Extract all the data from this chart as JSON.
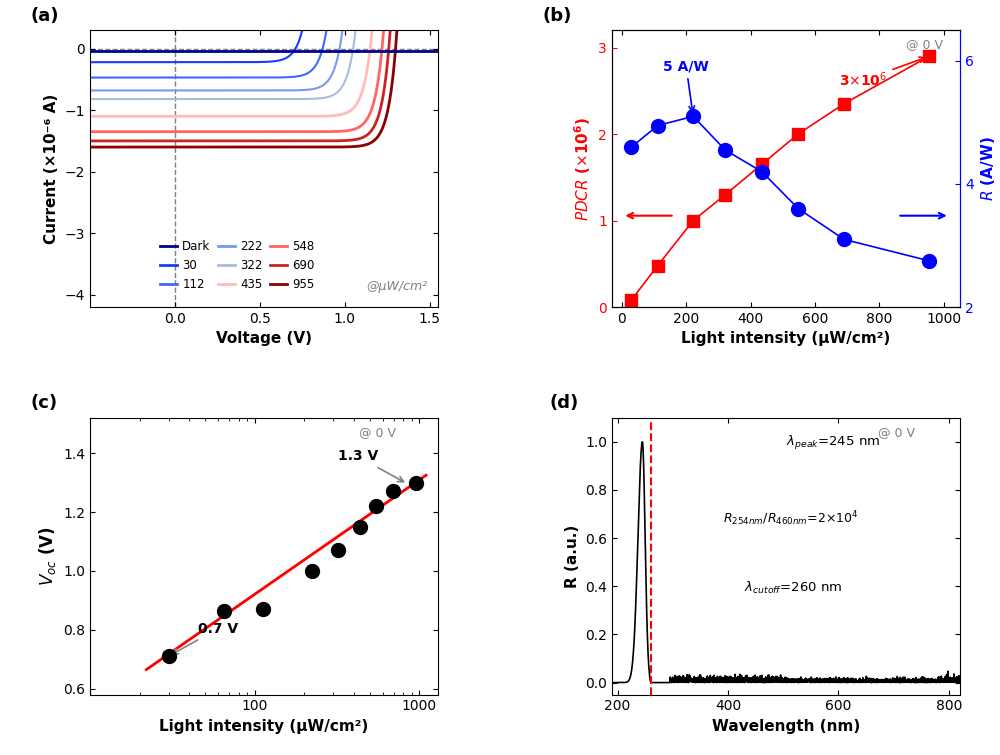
{
  "panel_a": {
    "labels": [
      "Dark",
      "30",
      "112",
      "222",
      "322",
      "435",
      "548",
      "690",
      "955"
    ],
    "colors": [
      "#00008B",
      "#1a3aff",
      "#4466ff",
      "#7799ee",
      "#aabbdd",
      "#ffbbbb",
      "#ff6666",
      "#cc2222",
      "#8B0000"
    ],
    "voc_values": [
      0,
      0.71,
      0.87,
      0.97,
      1.05,
      1.15,
      1.22,
      1.26,
      1.3
    ],
    "isc_values": [
      0.0,
      -0.22,
      -0.47,
      -0.68,
      -0.82,
      -1.1,
      -1.35,
      -1.5,
      -1.6
    ],
    "dark_level": -0.04,
    "xlim": [
      -0.5,
      1.55
    ],
    "ylim": [
      -4.2,
      0.3
    ],
    "xlabel": "Voltage (V)",
    "ylabel": "Current (×10⁻⁶ A)",
    "annotation": "@μW/cm²"
  },
  "panel_b": {
    "pdcr_x": [
      30,
      112,
      222,
      322,
      435,
      548,
      690,
      955
    ],
    "pdcr_y": [
      0.08,
      0.48,
      1.0,
      1.3,
      1.65,
      2.0,
      2.35,
      2.9
    ],
    "R_x": [
      30,
      112,
      222,
      322,
      435,
      548,
      690,
      955
    ],
    "R_y": [
      4.6,
      4.95,
      5.1,
      4.55,
      4.2,
      3.6,
      3.1,
      2.75
    ],
    "xlim": [
      -30,
      1050
    ],
    "pdcr_ylim": [
      0,
      3.2
    ],
    "R_ylim": [
      2.0,
      6.5
    ],
    "xlabel": "Light intensity (μW/cm²)",
    "annotation": "@ 0 V"
  },
  "panel_c": {
    "x": [
      30,
      65,
      112,
      222,
      322,
      435,
      548,
      690,
      955
    ],
    "y": [
      0.71,
      0.865,
      0.87,
      1.0,
      1.07,
      1.15,
      1.22,
      1.27,
      1.3
    ],
    "fit_x": [
      22,
      1100
    ],
    "fit_y": [
      0.665,
      1.325
    ],
    "xlim": [
      20,
      1300
    ],
    "ylim": [
      0.58,
      1.52
    ],
    "xlabel": "Light intensity (μW/cm²)",
    "annotation": "@ 0 V"
  },
  "panel_d": {
    "peak_x": 245,
    "cutoff_x": 260,
    "xlim": [
      190,
      820
    ],
    "ylim": [
      -0.05,
      1.1
    ],
    "xlabel": "Wavelength (nm)",
    "ylabel": "R (a.u.)",
    "annotation": "@ 0 V"
  }
}
